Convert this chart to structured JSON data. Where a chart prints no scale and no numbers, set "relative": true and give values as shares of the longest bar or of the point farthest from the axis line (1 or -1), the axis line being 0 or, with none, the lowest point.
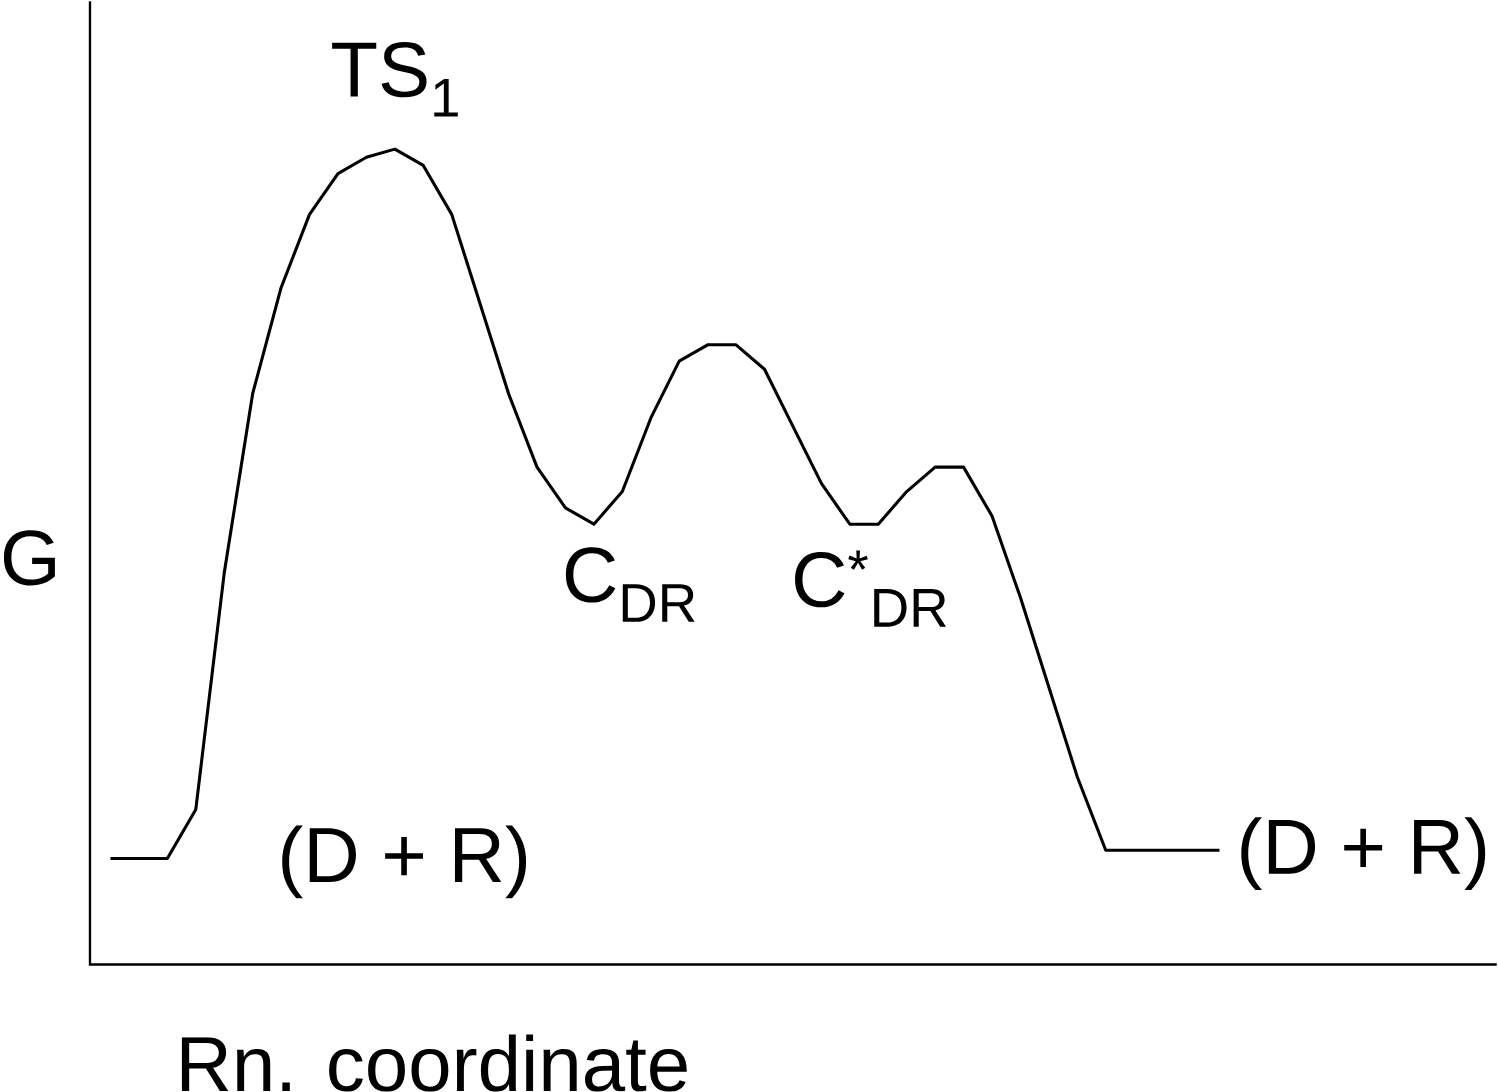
{
  "chart_data": {
    "type": "line",
    "relative": true,
    "xlabel": "Rn. coordinate",
    "ylabel": "G",
    "categories": [
      null,
      null,
      null,
      null,
      null,
      null,
      null,
      null,
      null,
      null,
      null,
      null,
      null,
      null,
      null,
      null,
      null,
      null,
      null,
      null,
      null,
      null,
      null,
      null,
      null,
      null,
      null,
      null,
      null,
      null,
      null,
      null,
      null,
      null,
      null,
      null,
      null,
      null,
      null,
      null
    ],
    "series": [
      {
        "color": "#000000",
        "values": [
          0.13,
          0.13,
          0.13,
          0.19,
          0.48,
          0.7,
          0.83,
          0.92,
          0.97,
          0.99,
          1.0,
          0.98,
          0.92,
          0.81,
          0.7,
          0.61,
          0.56,
          0.54,
          0.58,
          0.67,
          0.74,
          0.76,
          0.76,
          0.73,
          0.66,
          0.59,
          0.54,
          0.54,
          0.58,
          0.61,
          0.61,
          0.55,
          0.45,
          0.34,
          0.23,
          0.14,
          0.14,
          0.14,
          0.14,
          0.14
        ]
      }
    ],
    "annotations": [
      "TS$_{1}$",
      "C$_{DR}$",
      "C$^{*}$$_{DR}$",
      "(D + R)",
      "(D + R)"
    ],
    "marker": "none",
    "line_style": "solid"
  }
}
